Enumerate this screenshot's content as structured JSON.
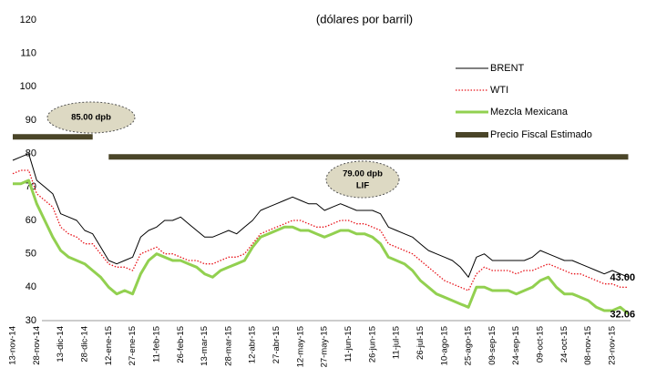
{
  "chart_data": {
    "type": "line",
    "title": "(dólares por barril)",
    "categories": [
      "13-nov-14",
      null,
      null,
      "28-nov-14",
      null,
      null,
      "13-dic-14",
      null,
      null,
      "28-dic-14",
      null,
      null,
      "12-ene-15",
      null,
      null,
      "27-ene-15",
      null,
      null,
      "11-feb-15",
      null,
      null,
      "26-feb-15",
      null,
      null,
      "13-mar-15",
      null,
      null,
      "28-mar-15",
      null,
      null,
      "12-abr-15",
      null,
      null,
      "27-abr-15",
      null,
      null,
      "12-may-15",
      null,
      null,
      "27-may-15",
      null,
      null,
      "11-jun-15",
      null,
      null,
      "26-jun-15",
      null,
      null,
      "11-jul-15",
      null,
      null,
      "26-jul-15",
      null,
      null,
      "10-ago-15",
      null,
      null,
      "25-ago-15",
      null,
      null,
      "09-sep-15",
      null,
      null,
      "24-sep-15",
      null,
      null,
      "09-oct-15",
      null,
      null,
      "24-oct-15",
      null,
      null,
      "08-nov-15",
      null,
      null,
      "23-nov-15",
      null,
      null
    ],
    "series": [
      {
        "name": "BRENT",
        "color": "#000000",
        "line_width": 1,
        "dash": "solid",
        "values": [
          78,
          79,
          80,
          72,
          70,
          68,
          62,
          61,
          60,
          57,
          56,
          52,
          48,
          47,
          48,
          49,
          55,
          57,
          58,
          60,
          60,
          61,
          59,
          57,
          55,
          55,
          56,
          57,
          56,
          58,
          60,
          63,
          64,
          65,
          66,
          67,
          66,
          65,
          65,
          63,
          64,
          65,
          64,
          63,
          63,
          63,
          62,
          58,
          57,
          56,
          55,
          53,
          51,
          50,
          49,
          48,
          46,
          43,
          49,
          50,
          48,
          48,
          48,
          48,
          48,
          49,
          51,
          50,
          49,
          48,
          48,
          47,
          46,
          45,
          44,
          45,
          44,
          43
        ],
        "value_labels": [
          null,
          null,
          null,
          null,
          null,
          null,
          null,
          null,
          null,
          null,
          null,
          null,
          null,
          null,
          null,
          null,
          null,
          null,
          null,
          null,
          null,
          null,
          null,
          null,
          null,
          null,
          null,
          null,
          null,
          null,
          null,
          null,
          null,
          null,
          null,
          null,
          null,
          null,
          null,
          null,
          null,
          null,
          null,
          null,
          null,
          null,
          null,
          null,
          null,
          null,
          null,
          null,
          null,
          null,
          null,
          null,
          null,
          null,
          null,
          null,
          null,
          null,
          null,
          null,
          null,
          null,
          null,
          null,
          null,
          null,
          null,
          null,
          null,
          null,
          null,
          null,
          null,
          "43.00"
        ]
      },
      {
        "name": "WTI",
        "color": "#e8141b",
        "line_width": 1.3,
        "dash": "dotted",
        "values": [
          74,
          75,
          75,
          68,
          66,
          64,
          58,
          56,
          55,
          53,
          53,
          50,
          47,
          46,
          46,
          45,
          50,
          51,
          52,
          50,
          50,
          49,
          48,
          48,
          47,
          47,
          48,
          49,
          49,
          50,
          53,
          56,
          57,
          58,
          59,
          60,
          60,
          59,
          58,
          58,
          59,
          60,
          60,
          59,
          59,
          58,
          57,
          53,
          52,
          51,
          50,
          48,
          46,
          44,
          42,
          41,
          40,
          39,
          44,
          46,
          45,
          45,
          45,
          44,
          45,
          45,
          46,
          47,
          46,
          45,
          44,
          44,
          43,
          42,
          41,
          41,
          40,
          39.97
        ],
        "value_labels": [
          null,
          null,
          null,
          null,
          null,
          null,
          null,
          null,
          null,
          null,
          null,
          null,
          null,
          null,
          null,
          null,
          null,
          null,
          null,
          null,
          null,
          null,
          null,
          null,
          null,
          null,
          null,
          null,
          null,
          null,
          null,
          null,
          null,
          null,
          null,
          null,
          null,
          null,
          null,
          null,
          null,
          null,
          null,
          null,
          null,
          null,
          null,
          null,
          null,
          null,
          null,
          null,
          null,
          null,
          null,
          null,
          null,
          null,
          null,
          null,
          null,
          null,
          null,
          null,
          null,
          null,
          null,
          null,
          null,
          null,
          null,
          null,
          null,
          null,
          null,
          null,
          null,
          null
        ]
      },
      {
        "name": "Mezcla Mexicana",
        "color": "#92d050",
        "line_width": 3,
        "dash": "solid",
        "values": [
          71,
          71,
          72,
          65,
          60,
          55,
          51,
          49,
          48,
          47,
          45,
          43,
          40,
          38,
          39,
          38,
          44,
          48,
          50,
          49,
          48,
          48,
          47,
          46,
          44,
          43,
          45,
          46,
          47,
          48,
          52,
          55,
          56,
          57,
          58,
          58,
          57,
          57,
          56,
          55,
          56,
          57,
          57,
          56,
          56,
          55,
          53,
          49,
          48,
          47,
          45,
          42,
          40,
          38,
          37,
          36,
          35,
          34,
          40,
          40,
          39,
          39,
          39,
          38,
          39,
          40,
          42,
          43,
          40,
          38,
          38,
          37,
          36,
          34,
          33,
          33,
          34,
          32.06
        ],
        "value_labels": [
          null,
          null,
          null,
          null,
          null,
          null,
          null,
          null,
          null,
          null,
          null,
          null,
          null,
          null,
          null,
          null,
          null,
          null,
          null,
          null,
          null,
          null,
          null,
          null,
          null,
          null,
          null,
          null,
          null,
          null,
          null,
          null,
          null,
          null,
          null,
          null,
          null,
          null,
          null,
          null,
          null,
          null,
          null,
          null,
          null,
          null,
          null,
          null,
          null,
          null,
          null,
          null,
          null,
          null,
          null,
          null,
          null,
          null,
          null,
          null,
          null,
          null,
          null,
          null,
          null,
          null,
          null,
          null,
          null,
          null,
          null,
          null,
          null,
          null,
          null,
          null,
          null,
          "32.06"
        ]
      },
      {
        "name": "Precio Fiscal Estimado",
        "color": "#4a4528",
        "line_width": 6,
        "dash": "solid",
        "values": [
          85,
          85,
          85,
          85,
          85,
          85,
          85,
          85,
          85,
          85,
          85,
          null,
          79,
          79,
          79,
          79,
          79,
          79,
          79,
          79,
          79,
          79,
          79,
          79,
          79,
          79,
          79,
          79,
          79,
          79,
          79,
          79,
          79,
          79,
          79,
          79,
          79,
          79,
          79,
          79,
          79,
          79,
          79,
          79,
          79,
          79,
          79,
          79,
          79,
          79,
          79,
          79,
          79,
          79,
          79,
          79,
          79,
          79,
          79,
          79,
          79,
          79,
          79,
          79,
          79,
          79,
          79,
          79,
          79,
          79,
          79,
          79,
          79,
          79,
          79,
          79,
          79,
          79
        ]
      }
    ],
    "annotations": [
      "85.00 dpb",
      "79.00 dpb",
      "LIF"
    ],
    "ylim": [
      30,
      120
    ],
    "yticks": [
      30,
      40,
      50,
      60,
      70,
      80,
      90,
      100,
      110,
      120
    ],
    "grid": false
  }
}
